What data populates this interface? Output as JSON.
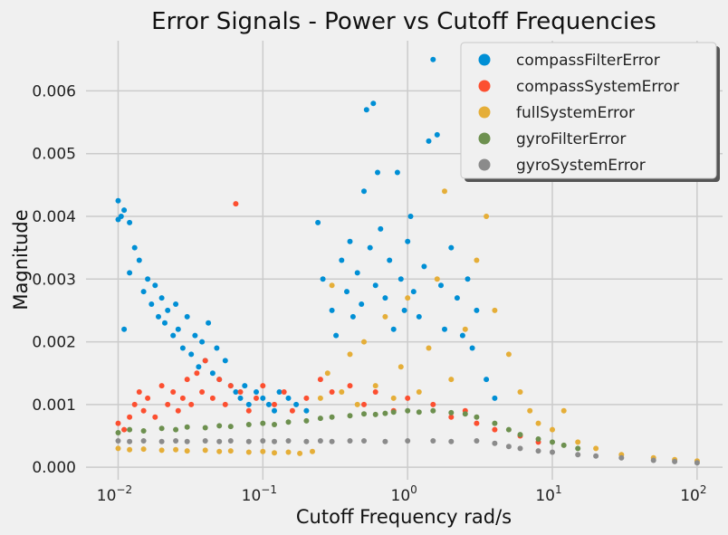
{
  "chart_data": {
    "type": "scatter",
    "title": "Error Signals - Power vs Cutoff Frequencies",
    "xlabel": "Cutoff Frequency rad/s",
    "ylabel": "Magnitude",
    "xscale": "log",
    "xlim": [
      0.006,
      150
    ],
    "ylim": [
      -0.0002,
      0.0068
    ],
    "xticks": [
      0.01,
      0.1,
      1,
      10,
      100
    ],
    "xtick_labels": [
      {
        "base": "10",
        "exp": "−2"
      },
      {
        "base": "10",
        "exp": "−1"
      },
      {
        "base": "10",
        "exp": "0"
      },
      {
        "base": "10",
        "exp": "1"
      },
      {
        "base": "10",
        "exp": "2"
      }
    ],
    "yticks": [
      0,
      0.001,
      0.002,
      0.003,
      0.004,
      0.005,
      0.006
    ],
    "ytick_labels": [
      "0.000",
      "0.001",
      "0.002",
      "0.003",
      "0.004",
      "0.005",
      "0.006"
    ],
    "grid": true,
    "legend_position": "top-right",
    "series": [
      {
        "name": "compassFilterError",
        "color": "#008fd5",
        "points": [
          [
            0.01,
            0.00425
          ],
          [
            0.01,
            0.00395
          ],
          [
            0.0105,
            0.004
          ],
          [
            0.011,
            0.0041
          ],
          [
            0.012,
            0.0039
          ],
          [
            0.011,
            0.0022
          ],
          [
            0.012,
            0.0031
          ],
          [
            0.013,
            0.0035
          ],
          [
            0.014,
            0.0033
          ],
          [
            0.015,
            0.0028
          ],
          [
            0.016,
            0.003
          ],
          [
            0.017,
            0.0026
          ],
          [
            0.018,
            0.0029
          ],
          [
            0.019,
            0.0024
          ],
          [
            0.02,
            0.0027
          ],
          [
            0.021,
            0.0023
          ],
          [
            0.022,
            0.0025
          ],
          [
            0.024,
            0.0021
          ],
          [
            0.025,
            0.0026
          ],
          [
            0.026,
            0.0022
          ],
          [
            0.028,
            0.0019
          ],
          [
            0.03,
            0.0024
          ],
          [
            0.032,
            0.0018
          ],
          [
            0.034,
            0.0021
          ],
          [
            0.036,
            0.0016
          ],
          [
            0.038,
            0.002
          ],
          [
            0.04,
            0.0017
          ],
          [
            0.042,
            0.0023
          ],
          [
            0.045,
            0.0015
          ],
          [
            0.048,
            0.0019
          ],
          [
            0.05,
            0.0014
          ],
          [
            0.055,
            0.0017
          ],
          [
            0.06,
            0.0013
          ],
          [
            0.065,
            0.0012
          ],
          [
            0.07,
            0.0011
          ],
          [
            0.075,
            0.0013
          ],
          [
            0.08,
            0.001
          ],
          [
            0.09,
            0.0012
          ],
          [
            0.1,
            0.0011
          ],
          [
            0.11,
            0.001
          ],
          [
            0.12,
            0.0009
          ],
          [
            0.13,
            0.0012
          ],
          [
            0.15,
            0.0011
          ],
          [
            0.17,
            0.001
          ],
          [
            0.2,
            0.0009
          ],
          [
            0.24,
            0.0039
          ],
          [
            0.26,
            0.003
          ],
          [
            0.3,
            0.0025
          ],
          [
            0.32,
            0.0021
          ],
          [
            0.35,
            0.0033
          ],
          [
            0.38,
            0.0028
          ],
          [
            0.4,
            0.0036
          ],
          [
            0.42,
            0.0024
          ],
          [
            0.45,
            0.0031
          ],
          [
            0.48,
            0.0026
          ],
          [
            0.5,
            0.0044
          ],
          [
            0.52,
            0.0057
          ],
          [
            0.55,
            0.0035
          ],
          [
            0.58,
            0.0058
          ],
          [
            0.6,
            0.0029
          ],
          [
            0.62,
            0.0047
          ],
          [
            0.65,
            0.0038
          ],
          [
            0.7,
            0.0027
          ],
          [
            0.75,
            0.0033
          ],
          [
            0.8,
            0.0022
          ],
          [
            0.85,
            0.0047
          ],
          [
            0.9,
            0.003
          ],
          [
            0.95,
            0.0025
          ],
          [
            1.0,
            0.0036
          ],
          [
            1.05,
            0.004
          ],
          [
            1.1,
            0.0028
          ],
          [
            1.2,
            0.0024
          ],
          [
            1.3,
            0.0032
          ],
          [
            1.4,
            0.0052
          ],
          [
            1.5,
            0.0065
          ],
          [
            1.6,
            0.0053
          ],
          [
            1.7,
            0.0029
          ],
          [
            1.8,
            0.0022
          ],
          [
            2.0,
            0.0035
          ],
          [
            2.2,
            0.0027
          ],
          [
            2.4,
            0.0021
          ],
          [
            2.6,
            0.003
          ],
          [
            2.8,
            0.0019
          ],
          [
            3.0,
            0.0025
          ],
          [
            3.5,
            0.0014
          ],
          [
            4.0,
            0.0011
          ]
        ]
      },
      {
        "name": "compassSystemError",
        "color": "#fc4f30",
        "points": [
          [
            0.01,
            0.0007
          ],
          [
            0.011,
            0.0006
          ],
          [
            0.012,
            0.0008
          ],
          [
            0.013,
            0.001
          ],
          [
            0.014,
            0.0012
          ],
          [
            0.015,
            0.0009
          ],
          [
            0.016,
            0.0011
          ],
          [
            0.018,
            0.0008
          ],
          [
            0.02,
            0.0013
          ],
          [
            0.022,
            0.001
          ],
          [
            0.024,
            0.0012
          ],
          [
            0.026,
            0.0009
          ],
          [
            0.028,
            0.0011
          ],
          [
            0.03,
            0.0014
          ],
          [
            0.032,
            0.001
          ],
          [
            0.035,
            0.0015
          ],
          [
            0.038,
            0.0012
          ],
          [
            0.04,
            0.0017
          ],
          [
            0.045,
            0.0011
          ],
          [
            0.05,
            0.0014
          ],
          [
            0.055,
            0.001
          ],
          [
            0.06,
            0.0013
          ],
          [
            0.065,
            0.0042
          ],
          [
            0.07,
            0.0012
          ],
          [
            0.08,
            0.0009
          ],
          [
            0.09,
            0.0011
          ],
          [
            0.1,
            0.0013
          ],
          [
            0.12,
            0.001
          ],
          [
            0.14,
            0.0012
          ],
          [
            0.16,
            0.0009
          ],
          [
            0.2,
            0.0011
          ],
          [
            0.25,
            0.0014
          ],
          [
            0.3,
            0.0012
          ],
          [
            0.4,
            0.0013
          ],
          [
            0.5,
            0.001
          ],
          [
            0.6,
            0.0012
          ],
          [
            0.8,
            0.0009
          ],
          [
            1.0,
            0.0011
          ],
          [
            1.5,
            0.001
          ],
          [
            2.0,
            0.0008
          ],
          [
            2.5,
            0.0009
          ],
          [
            3.0,
            0.0007
          ],
          [
            4.0,
            0.0006
          ],
          [
            6.0,
            0.0005
          ],
          [
            8.0,
            0.0004
          ]
        ]
      },
      {
        "name": "fullSystemError",
        "color": "#e5ae38",
        "points": [
          [
            0.01,
            0.0003
          ],
          [
            0.012,
            0.00028
          ],
          [
            0.015,
            0.00029
          ],
          [
            0.02,
            0.00027
          ],
          [
            0.025,
            0.00028
          ],
          [
            0.03,
            0.00026
          ],
          [
            0.04,
            0.00027
          ],
          [
            0.05,
            0.00025
          ],
          [
            0.06,
            0.00026
          ],
          [
            0.08,
            0.00024
          ],
          [
            0.1,
            0.00025
          ],
          [
            0.12,
            0.00023
          ],
          [
            0.15,
            0.00024
          ],
          [
            0.18,
            0.00022
          ],
          [
            0.22,
            0.00025
          ],
          [
            0.25,
            0.0011
          ],
          [
            0.28,
            0.0015
          ],
          [
            0.3,
            0.0029
          ],
          [
            0.35,
            0.0012
          ],
          [
            0.4,
            0.0018
          ],
          [
            0.45,
            0.001
          ],
          [
            0.5,
            0.002
          ],
          [
            0.6,
            0.0013
          ],
          [
            0.7,
            0.0024
          ],
          [
            0.8,
            0.0011
          ],
          [
            0.9,
            0.0016
          ],
          [
            1.0,
            0.0027
          ],
          [
            1.2,
            0.0012
          ],
          [
            1.4,
            0.0019
          ],
          [
            1.6,
            0.003
          ],
          [
            1.8,
            0.0044
          ],
          [
            2.0,
            0.0014
          ],
          [
            2.5,
            0.0022
          ],
          [
            3.0,
            0.0033
          ],
          [
            3.5,
            0.004
          ],
          [
            4.0,
            0.0025
          ],
          [
            5.0,
            0.0018
          ],
          [
            6.0,
            0.0012
          ],
          [
            7.0,
            0.0009
          ],
          [
            8.0,
            0.0007
          ],
          [
            10.0,
            0.0006
          ],
          [
            12.0,
            0.0009
          ],
          [
            15.0,
            0.0004
          ],
          [
            20.0,
            0.0003
          ],
          [
            30.0,
            0.0002
          ],
          [
            50.0,
            0.00015
          ],
          [
            70.0,
            0.00012
          ],
          [
            100.0,
            0.0001
          ]
        ]
      },
      {
        "name": "gyroFilterError",
        "color": "#6d904f",
        "points": [
          [
            0.01,
            0.00055
          ],
          [
            0.012,
            0.0006
          ],
          [
            0.015,
            0.00058
          ],
          [
            0.02,
            0.00062
          ],
          [
            0.025,
            0.0006
          ],
          [
            0.03,
            0.00064
          ],
          [
            0.04,
            0.00063
          ],
          [
            0.05,
            0.00066
          ],
          [
            0.06,
            0.00065
          ],
          [
            0.08,
            0.00068
          ],
          [
            0.1,
            0.0007
          ],
          [
            0.12,
            0.00068
          ],
          [
            0.15,
            0.00072
          ],
          [
            0.2,
            0.00074
          ],
          [
            0.25,
            0.00078
          ],
          [
            0.3,
            0.0008
          ],
          [
            0.4,
            0.00082
          ],
          [
            0.5,
            0.00085
          ],
          [
            0.6,
            0.00084
          ],
          [
            0.7,
            0.00086
          ],
          [
            0.8,
            0.00088
          ],
          [
            1.0,
            0.0009
          ],
          [
            1.2,
            0.00088
          ],
          [
            1.5,
            0.0009
          ],
          [
            2.0,
            0.00087
          ],
          [
            2.5,
            0.00085
          ],
          [
            3.0,
            0.0008
          ],
          [
            4.0,
            0.0007
          ],
          [
            5.0,
            0.0006
          ],
          [
            6.0,
            0.00052
          ],
          [
            8.0,
            0.00045
          ],
          [
            10.0,
            0.0004
          ],
          [
            12.0,
            0.00035
          ],
          [
            15.0,
            0.0003
          ]
        ]
      },
      {
        "name": "gyroSystemError",
        "color": "#8b8b8b",
        "points": [
          [
            0.01,
            0.00042
          ],
          [
            0.012,
            0.00041
          ],
          [
            0.015,
            0.00042
          ],
          [
            0.02,
            0.00041
          ],
          [
            0.025,
            0.00042
          ],
          [
            0.03,
            0.00041
          ],
          [
            0.04,
            0.00042
          ],
          [
            0.05,
            0.00041
          ],
          [
            0.06,
            0.00042
          ],
          [
            0.08,
            0.00041
          ],
          [
            0.1,
            0.00042
          ],
          [
            0.12,
            0.00041
          ],
          [
            0.15,
            0.00042
          ],
          [
            0.2,
            0.00041
          ],
          [
            0.25,
            0.00042
          ],
          [
            0.3,
            0.00041
          ],
          [
            0.4,
            0.00042
          ],
          [
            0.5,
            0.00042
          ],
          [
            0.7,
            0.00041
          ],
          [
            1.0,
            0.00042
          ],
          [
            1.5,
            0.00042
          ],
          [
            2.0,
            0.00041
          ],
          [
            3.0,
            0.00042
          ],
          [
            4.0,
            0.00038
          ],
          [
            5.0,
            0.00033
          ],
          [
            6.0,
            0.0003
          ],
          [
            8.0,
            0.00026
          ],
          [
            10.0,
            0.00024
          ],
          [
            15.0,
            0.0002
          ],
          [
            20.0,
            0.00018
          ],
          [
            30.0,
            0.00015
          ],
          [
            50.0,
            0.00011
          ],
          [
            70.0,
            9e-05
          ],
          [
            100.0,
            7e-05
          ]
        ]
      }
    ]
  }
}
